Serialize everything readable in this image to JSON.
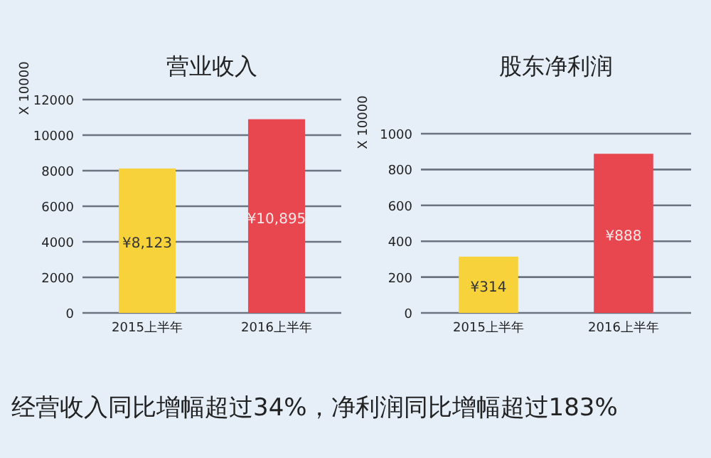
{
  "chart_data": [
    {
      "type": "bar",
      "title": "营业收入",
      "ylabel": "X 10000",
      "categories": [
        "2015上半年",
        "2016上半年"
      ],
      "values": [
        8123,
        10895
      ],
      "colors": [
        "#f7d23a",
        "#e8474f"
      ],
      "value_labels": [
        "¥8,123",
        "¥10,895"
      ],
      "ylim": [
        0,
        12000
      ],
      "yticks": [
        0,
        2000,
        4000,
        6000,
        8000,
        10000,
        12000
      ],
      "grid": "y",
      "annotations": [
        "经营收入同比增幅超过34%，净利润同比增幅超过183%"
      ]
    },
    {
      "type": "bar",
      "title": "股东净利润",
      "ylabel": "X 10000",
      "categories": [
        "2015上半年",
        "2016上半年"
      ],
      "values": [
        314,
        888
      ],
      "colors": [
        "#f7d23a",
        "#e8474f"
      ],
      "value_labels": [
        "¥314",
        "¥888"
      ],
      "ylim": [
        0,
        1000
      ],
      "yticks": [
        0,
        200,
        400,
        600,
        800,
        1000
      ],
      "grid": "y"
    }
  ]
}
